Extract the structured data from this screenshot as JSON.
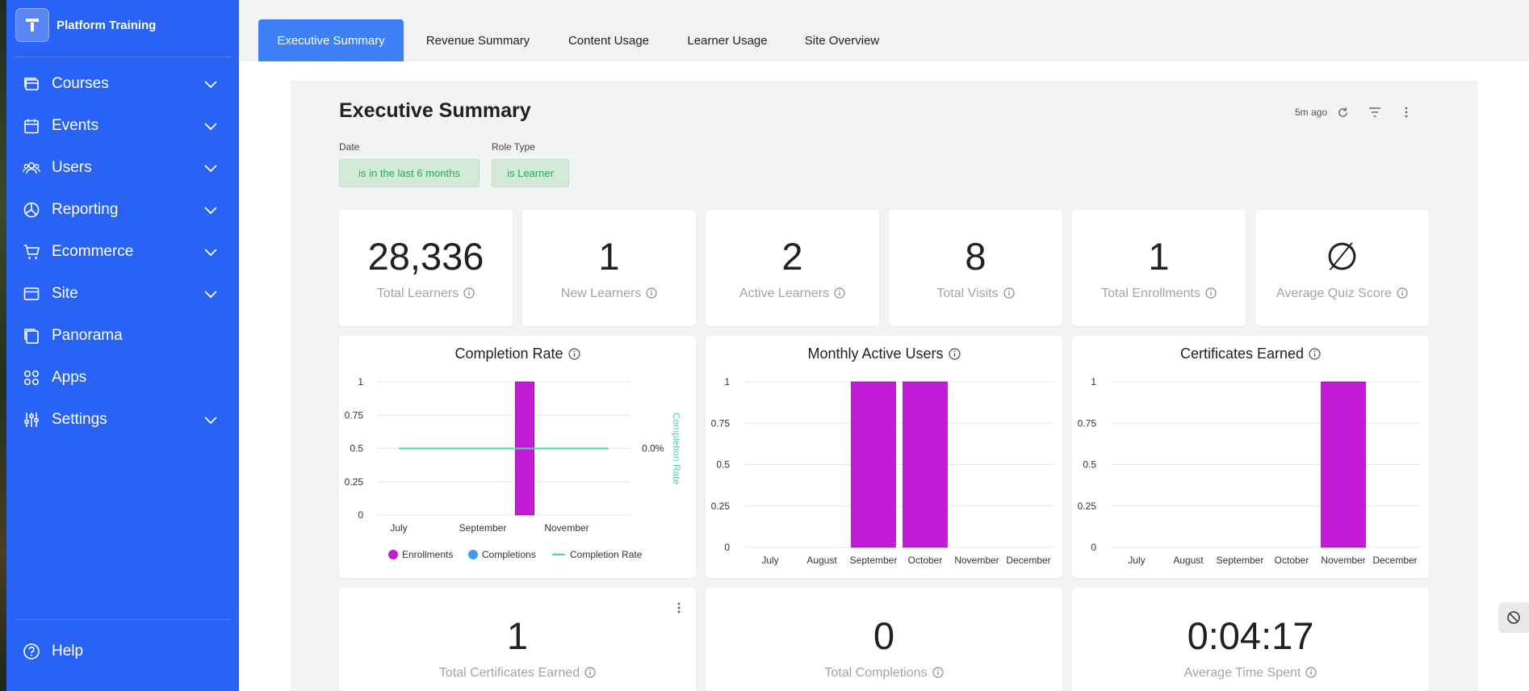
{
  "brand": {
    "name": "Platform Training"
  },
  "sidebar": {
    "items": [
      {
        "label": "Courses",
        "icon": "courses-icon",
        "has_chevron": true
      },
      {
        "label": "Events",
        "icon": "calendar-icon",
        "has_chevron": true
      },
      {
        "label": "Users",
        "icon": "users-icon",
        "has_chevron": true
      },
      {
        "label": "Reporting",
        "icon": "pie-chart-icon",
        "has_chevron": true
      },
      {
        "label": "Ecommerce",
        "icon": "cart-icon",
        "has_chevron": true
      },
      {
        "label": "Site",
        "icon": "site-icon",
        "has_chevron": true
      },
      {
        "label": "Panorama",
        "icon": "panorama-icon",
        "has_chevron": false
      },
      {
        "label": "Apps",
        "icon": "apps-icon",
        "has_chevron": false
      },
      {
        "label": "Settings",
        "icon": "sliders-icon",
        "has_chevron": true
      }
    ],
    "help": {
      "label": "Help",
      "icon": "help-icon"
    }
  },
  "tabs": [
    {
      "label": "Executive Summary",
      "active": true
    },
    {
      "label": "Revenue Summary",
      "active": false
    },
    {
      "label": "Content Usage",
      "active": false
    },
    {
      "label": "Learner Usage",
      "active": false
    },
    {
      "label": "Site Overview",
      "active": false
    }
  ],
  "dashboard": {
    "title": "Executive Summary",
    "updated": "5m ago",
    "filters": [
      {
        "label": "Date",
        "value": "is in the last 6 months"
      },
      {
        "label": "Role Type",
        "value": "is Learner"
      }
    ]
  },
  "kpis": [
    {
      "value": "28,336",
      "label": "Total Learners"
    },
    {
      "value": "1",
      "label": "New Learners"
    },
    {
      "value": "2",
      "label": "Active Learners"
    },
    {
      "value": "8",
      "label": "Total Visits"
    },
    {
      "value": "1",
      "label": "Total Enrollments"
    },
    {
      "value": "∅",
      "label": "Average Quiz Score"
    }
  ],
  "kpis_bottom": [
    {
      "value": "1",
      "label": "Total Certificates Earned"
    },
    {
      "value": "0",
      "label": "Total Completions"
    },
    {
      "value": "0:04:17",
      "label": "Average Time Spent"
    }
  ],
  "colors": {
    "sidebar": "#2863f5",
    "tab_active": "#3e7ef7",
    "bar": "#c31bd6",
    "completions": "#3d9bf0",
    "rate_line": "#4fd6a6",
    "chip_bg": "#d3ead9",
    "chip_text": "#2aa853"
  },
  "chart_data": [
    {
      "type": "bar",
      "title": "Completion Rate",
      "categories": [
        "July",
        "August",
        "September",
        "October",
        "November",
        "December"
      ],
      "x_tick_labels": [
        "July",
        "September",
        "November"
      ],
      "series": [
        {
          "name": "Enrollments",
          "type": "bar",
          "values": [
            0,
            0,
            0,
            1,
            0,
            0
          ]
        },
        {
          "name": "Completions",
          "type": "bar",
          "values": [
            0,
            0,
            0,
            0,
            0,
            0
          ]
        },
        {
          "name": "Completion Rate",
          "type": "line",
          "axis": "right",
          "values": [
            0,
            0,
            0,
            0,
            0,
            0
          ]
        }
      ],
      "ylim": [
        0,
        1
      ],
      "y_ticks": [
        "0",
        "0.25",
        "0.5",
        "0.75",
        "1"
      ],
      "y2_label": "Completion Rate",
      "y2_tick": "0.0%",
      "legend": "bottom",
      "grid": true
    },
    {
      "type": "bar",
      "title": "Monthly Active Users",
      "categories": [
        "July",
        "August",
        "September",
        "October",
        "November",
        "December"
      ],
      "values": [
        0,
        0,
        1,
        1,
        0,
        0
      ],
      "ylim": [
        0,
        1
      ],
      "y_ticks": [
        "0",
        "0.25",
        "0.5",
        "0.75",
        "1"
      ],
      "grid": true
    },
    {
      "type": "bar",
      "title": "Certificates Earned",
      "categories": [
        "July",
        "August",
        "September",
        "October",
        "November",
        "December"
      ],
      "values": [
        0,
        0,
        0,
        0,
        1,
        0
      ],
      "ylim": [
        0,
        1
      ],
      "y_ticks": [
        "0",
        "0.25",
        "0.5",
        "0.75",
        "1"
      ],
      "grid": true
    }
  ]
}
